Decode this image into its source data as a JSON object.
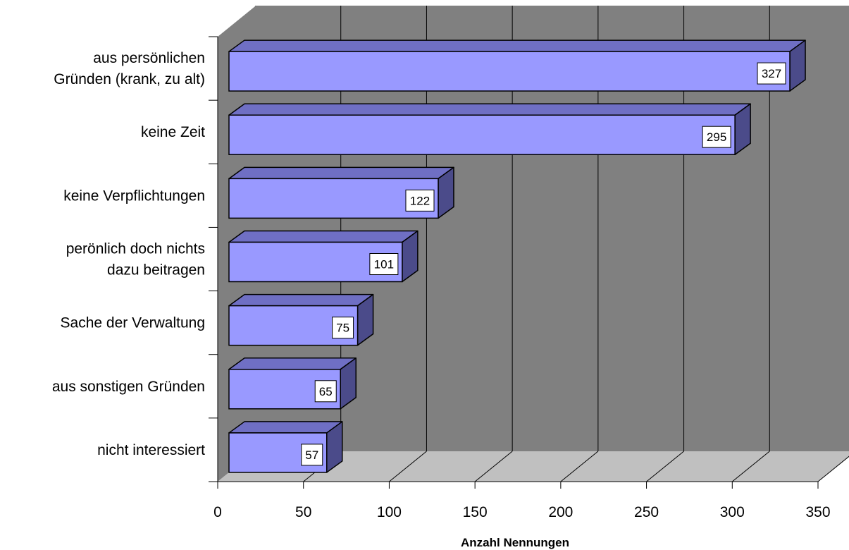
{
  "chart_data": {
    "type": "bar",
    "orientation": "horizontal",
    "three_d": true,
    "title": "",
    "xlabel": "Anzahl Nennungen",
    "ylabel": "",
    "categories": [
      [
        "aus persönlichen",
        "Gründen (krank, zu alt)"
      ],
      [
        "keine Zeit"
      ],
      [
        "keine Verpflichtungen"
      ],
      [
        "perönlich doch nichts",
        "dazu beitragen"
      ],
      [
        "Sache der Verwaltung"
      ],
      [
        "aus sonstigen Gründen"
      ],
      [
        "nicht interessiert"
      ]
    ],
    "values": [
      327,
      295,
      122,
      101,
      75,
      65,
      57
    ],
    "xlim": [
      0,
      350
    ],
    "xticks": [
      0,
      50,
      100,
      150,
      200,
      250,
      300,
      350
    ],
    "grid": true,
    "legend": "none",
    "colors": {
      "bar_front": "#9999FF",
      "bar_top": "#6F6FC4",
      "bar_side": "#4B4B8A",
      "wall": "#808080",
      "floor": "#C0C0C0",
      "label_box": "#FFFFFF"
    }
  }
}
